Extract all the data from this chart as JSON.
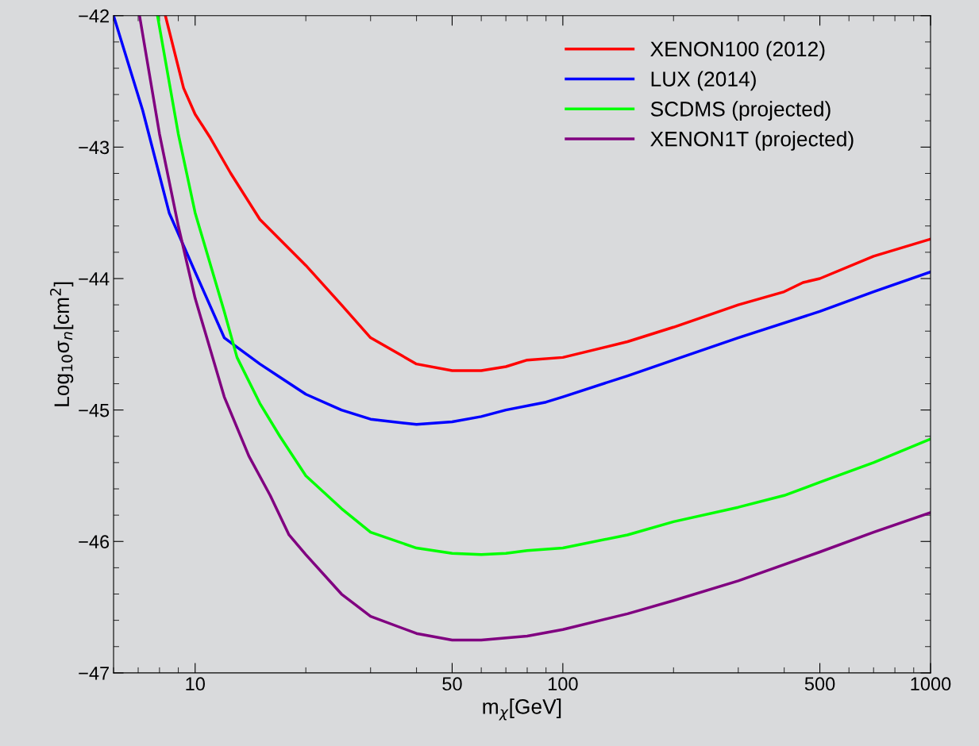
{
  "chart_data": {
    "type": "line",
    "xlabel": "m$_{χ}$[GeV]",
    "ylabel": "Log$_{10}$σ$_{n}$[cm$^{2}$]",
    "log": "x",
    "xlim": [
      6,
      1000
    ],
    "xticks": [
      10,
      50,
      100,
      500,
      1000
    ],
    "ylim": [
      -47,
      -42
    ],
    "yticks": [
      {
        "value": -47,
        "label": "−47"
      },
      {
        "value": -46,
        "label": "−46"
      },
      {
        "value": -45,
        "label": "−45"
      },
      {
        "value": -44,
        "label": "−44"
      },
      {
        "value": -43,
        "label": "−43"
      },
      {
        "value": -42,
        "label": "−42"
      }
    ],
    "grid": false,
    "legend": "top right",
    "marker": "none",
    "line_style": "solid",
    "series": [
      {
        "name": "XENON100 (2012)",
        "color": "#ff0000",
        "x": [
          8.3,
          9.3,
          10,
          11,
          12.5,
          15,
          20,
          25,
          30,
          40,
          50,
          60,
          70,
          80,
          100,
          150,
          200,
          300,
          400,
          450,
          500,
          700,
          1000
        ],
        "values": [
          -42.0,
          -42.55,
          -42.75,
          -42.93,
          -43.2,
          -43.55,
          -43.9,
          -44.2,
          -44.45,
          -44.65,
          -44.7,
          -44.7,
          -44.67,
          -44.62,
          -44.6,
          -44.48,
          -44.37,
          -44.2,
          -44.1,
          -44.03,
          -44.0,
          -43.83,
          -43.7
        ]
      },
      {
        "name": "LUX (2014)",
        "color": "#0000ff",
        "x": [
          6.0,
          7.2,
          8.5,
          10,
          12,
          15,
          17,
          20,
          25,
          30,
          40,
          50,
          60,
          70,
          90,
          100,
          150,
          200,
          300,
          500,
          700,
          1000
        ],
        "values": [
          -42.0,
          -42.72,
          -43.5,
          -43.95,
          -44.45,
          -44.65,
          -44.75,
          -44.88,
          -45.0,
          -45.07,
          -45.11,
          -45.09,
          -45.05,
          -45.0,
          -44.94,
          -44.9,
          -44.74,
          -44.62,
          -44.45,
          -44.25,
          -44.1,
          -43.95
        ]
      },
      {
        "name": "SCDMS (projected)",
        "color": "#00ff00",
        "x": [
          7.9,
          9,
          10,
          12,
          13,
          15,
          17,
          20,
          25,
          30,
          40,
          50,
          60,
          70,
          80,
          100,
          150,
          200,
          300,
          400,
          500,
          700,
          1000
        ],
        "values": [
          -42.0,
          -42.9,
          -43.5,
          -44.25,
          -44.6,
          -44.95,
          -45.2,
          -45.5,
          -45.75,
          -45.93,
          -46.05,
          -46.09,
          -46.1,
          -46.09,
          -46.07,
          -46.05,
          -45.95,
          -45.85,
          -45.74,
          -45.65,
          -45.55,
          -45.4,
          -45.22
        ]
      },
      {
        "name": "XENON1T (projected)",
        "color": "#800080",
        "x": [
          7.06,
          8,
          9,
          10,
          12,
          14,
          16,
          18,
          20,
          25,
          30,
          40,
          50,
          60,
          80,
          100,
          150,
          200,
          300,
          500,
          700,
          1000
        ],
        "values": [
          -42.0,
          -42.9,
          -43.6,
          -44.15,
          -44.9,
          -45.35,
          -45.65,
          -45.95,
          -46.1,
          -46.4,
          -46.57,
          -46.7,
          -46.75,
          -46.75,
          -46.72,
          -46.67,
          -46.55,
          -46.45,
          -46.3,
          -46.08,
          -45.93,
          -45.78
        ]
      }
    ]
  }
}
